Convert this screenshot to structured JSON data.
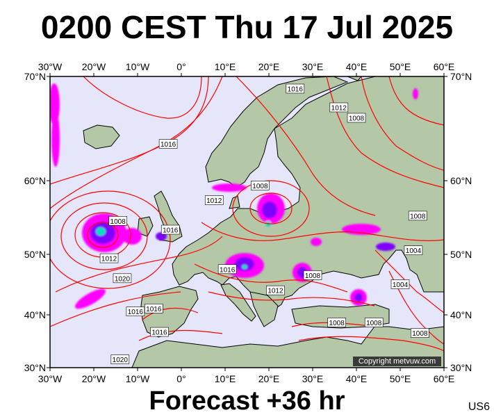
{
  "title": "0200 CEST Thu 17 Jul 2025",
  "footer": "Forecast +36 hr",
  "model_code": "US6",
  "copyright": "Copyright metvuw.com",
  "axes": {
    "lon_labels": [
      "30°W",
      "20°W",
      "10°W",
      "0°",
      "10°E",
      "20°E",
      "30°E",
      "40°E",
      "50°E",
      "60°E"
    ],
    "lat_labels": [
      "70°N",
      "60°N",
      "50°N",
      "40°N",
      "30°N"
    ]
  },
  "isobar_labels": [
    {
      "text": "1016",
      "lon": -3,
      "lat": 63.5
    },
    {
      "text": "1016",
      "lon": 26,
      "lat": 68.8
    },
    {
      "text": "1012",
      "lon": 36,
      "lat": 67.0
    },
    {
      "text": "1008",
      "lon": 40,
      "lat": 66.0
    },
    {
      "text": "1008",
      "lon": 18,
      "lat": 59.3
    },
    {
      "text": "1012",
      "lon": 7.5,
      "lat": 57.3
    },
    {
      "text": "1008",
      "lon": -14.5,
      "lat": 54.5
    },
    {
      "text": "1016",
      "lon": -2.5,
      "lat": 53.3
    },
    {
      "text": "1012",
      "lon": -16.5,
      "lat": 49.3
    },
    {
      "text": "1020",
      "lon": -13.5,
      "lat": 46.0
    },
    {
      "text": "1016",
      "lon": 10.5,
      "lat": 47.5
    },
    {
      "text": "1008",
      "lon": 30,
      "lat": 46.5
    },
    {
      "text": "1012",
      "lon": 21.5,
      "lat": 44.0
    },
    {
      "text": "1016",
      "lon": -6.3,
      "lat": 41.0
    },
    {
      "text": "1016",
      "lon": -10.5,
      "lat": 40.5
    },
    {
      "text": "1016",
      "lon": -5,
      "lat": 36.7
    },
    {
      "text": "1008",
      "lon": 35.5,
      "lat": 38.5
    },
    {
      "text": "1008",
      "lon": 44,
      "lat": 38.5
    },
    {
      "text": "1004",
      "lon": 50,
      "lat": 45.0
    },
    {
      "text": "1004",
      "lon": 53,
      "lat": 50.5
    },
    {
      "text": "1008",
      "lon": 54,
      "lat": 55.2
    },
    {
      "text": "1008",
      "lon": 54.5,
      "lat": 36.5
    },
    {
      "text": "1020",
      "lon": -14,
      "lat": 31.5
    }
  ],
  "colors": {
    "sea": "#e6e6fa",
    "land": "#b4c7a6",
    "isobar": "#ff0000",
    "rain_light": "#ff00ff",
    "rain_medium": "#8000ff",
    "rain_heavy": "#0000ff",
    "rain_intense": "#00e0c0"
  }
}
